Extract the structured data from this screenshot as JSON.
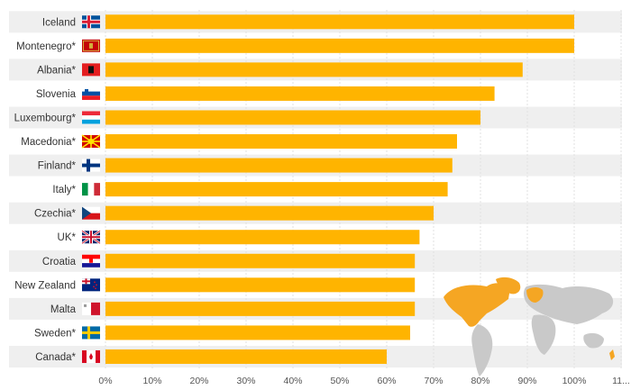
{
  "chart_data": {
    "type": "bar",
    "orientation": "horizontal",
    "categories": [
      "Iceland",
      "Montenegro*",
      "Albania*",
      "Slovenia",
      "Luxembourg*",
      "Macedonia*",
      "Finland*",
      "Italy*",
      "Czechia*",
      "UK*",
      "Croatia",
      "New Zealand",
      "Malta",
      "Sweden*",
      "Canada*"
    ],
    "values": [
      100,
      100,
      89,
      83,
      80,
      75,
      74,
      73,
      70,
      67,
      66,
      66,
      66,
      65,
      60
    ],
    "x_tick_labels": [
      "0%",
      "10%",
      "20%",
      "30%",
      "40%",
      "50%",
      "60%",
      "70%",
      "80%",
      "90%",
      "100%",
      "11..."
    ],
    "xlim": [
      0,
      110
    ],
    "bar_color": "#FFB400",
    "stripe_color": "#EFEFEF",
    "grid": true,
    "legend": "none",
    "flags": [
      "flag-iceland",
      "flag-montenegro",
      "flag-albania",
      "flag-slovenia",
      "flag-luxembourg",
      "flag-macedonia",
      "flag-finland",
      "flag-italy",
      "flag-czechia",
      "flag-uk",
      "flag-croatia",
      "flag-new-zealand",
      "flag-malta",
      "flag-sweden",
      "flag-canada"
    ],
    "inset_map": "world-map-icon"
  }
}
